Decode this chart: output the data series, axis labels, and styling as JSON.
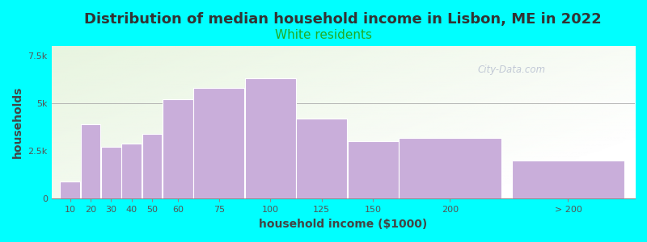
{
  "title": "Distribution of median household income in Lisbon, ME in 2022",
  "subtitle": "White residents",
  "xlabel": "household income ($1000)",
  "ylabel": "households",
  "background_color": "#00FFFF",
  "bar_color": "#c9aeda",
  "title_fontsize": 13,
  "subtitle_fontsize": 11,
  "subtitle_color": "#22aa22",
  "values": [
    900,
    3900,
    2700,
    2900,
    3400,
    5200,
    5800,
    6300,
    4200,
    3000,
    3200,
    2000
  ],
  "bar_lefts": [
    10,
    20,
    30,
    40,
    50,
    60,
    75,
    100,
    125,
    150,
    175,
    230
  ],
  "bar_widths": [
    10,
    10,
    10,
    10,
    10,
    15,
    25,
    25,
    25,
    25,
    50,
    55
  ],
  "xtick_labels": [
    "10",
    "20",
    "30",
    "40",
    "50",
    "60",
    "75",
    "100",
    "125",
    "150",
    "200",
    "> 200"
  ],
  "ylim": [
    0,
    8000
  ],
  "yticks": [
    0,
    2500,
    5000,
    7500
  ],
  "ytick_labels": [
    "0",
    "2.5k",
    "5k",
    "7.5k"
  ],
  "xlim_left": 6,
  "xlim_right": 290,
  "watermark": "City-Data.com",
  "watermark_color": "#b0b8cc"
}
